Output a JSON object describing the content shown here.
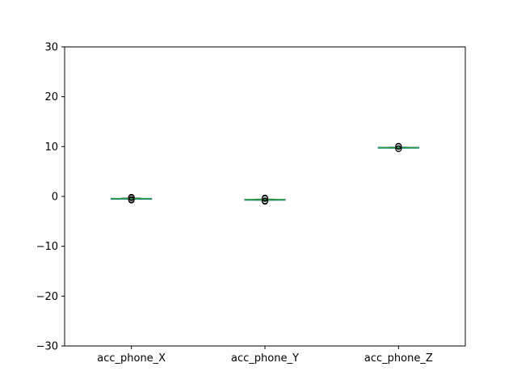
{
  "chart_data": {
    "type": "box",
    "categories": [
      "acc_phone_X",
      "acc_phone_Y",
      "acc_phone_Z"
    ],
    "series": [
      {
        "stats": {
          "whislo": -0.55,
          "q1": -0.5,
          "med": -0.45,
          "q3": -0.4,
          "whishi": -0.35
        },
        "fliers": [
          -0.75,
          -0.6,
          -0.3,
          -0.15
        ]
      },
      {
        "stats": {
          "whislo": -0.75,
          "q1": -0.7,
          "med": -0.65,
          "q3": -0.6,
          "whishi": -0.55
        },
        "fliers": [
          -1.0,
          -0.85,
          -0.45,
          -0.3
        ]
      },
      {
        "stats": {
          "whislo": 9.7,
          "q1": 9.75,
          "med": 9.8,
          "q3": 9.85,
          "whishi": 9.9
        },
        "fliers": [
          9.55,
          9.6,
          10.0,
          10.1
        ]
      }
    ],
    "ylim": [
      -30,
      30
    ],
    "yticks": [
      -30,
      -20,
      -10,
      0,
      10,
      20,
      30
    ],
    "ytick_labels": [
      "−30",
      "−20",
      "−10",
      "0",
      "10",
      "20",
      "30"
    ],
    "title": "",
    "xlabel": "",
    "ylabel": "",
    "grid": false,
    "colors": {
      "box": "#1f77b4",
      "median": "#2ca02c",
      "whisker": "#000000",
      "flier": "#000000"
    }
  }
}
